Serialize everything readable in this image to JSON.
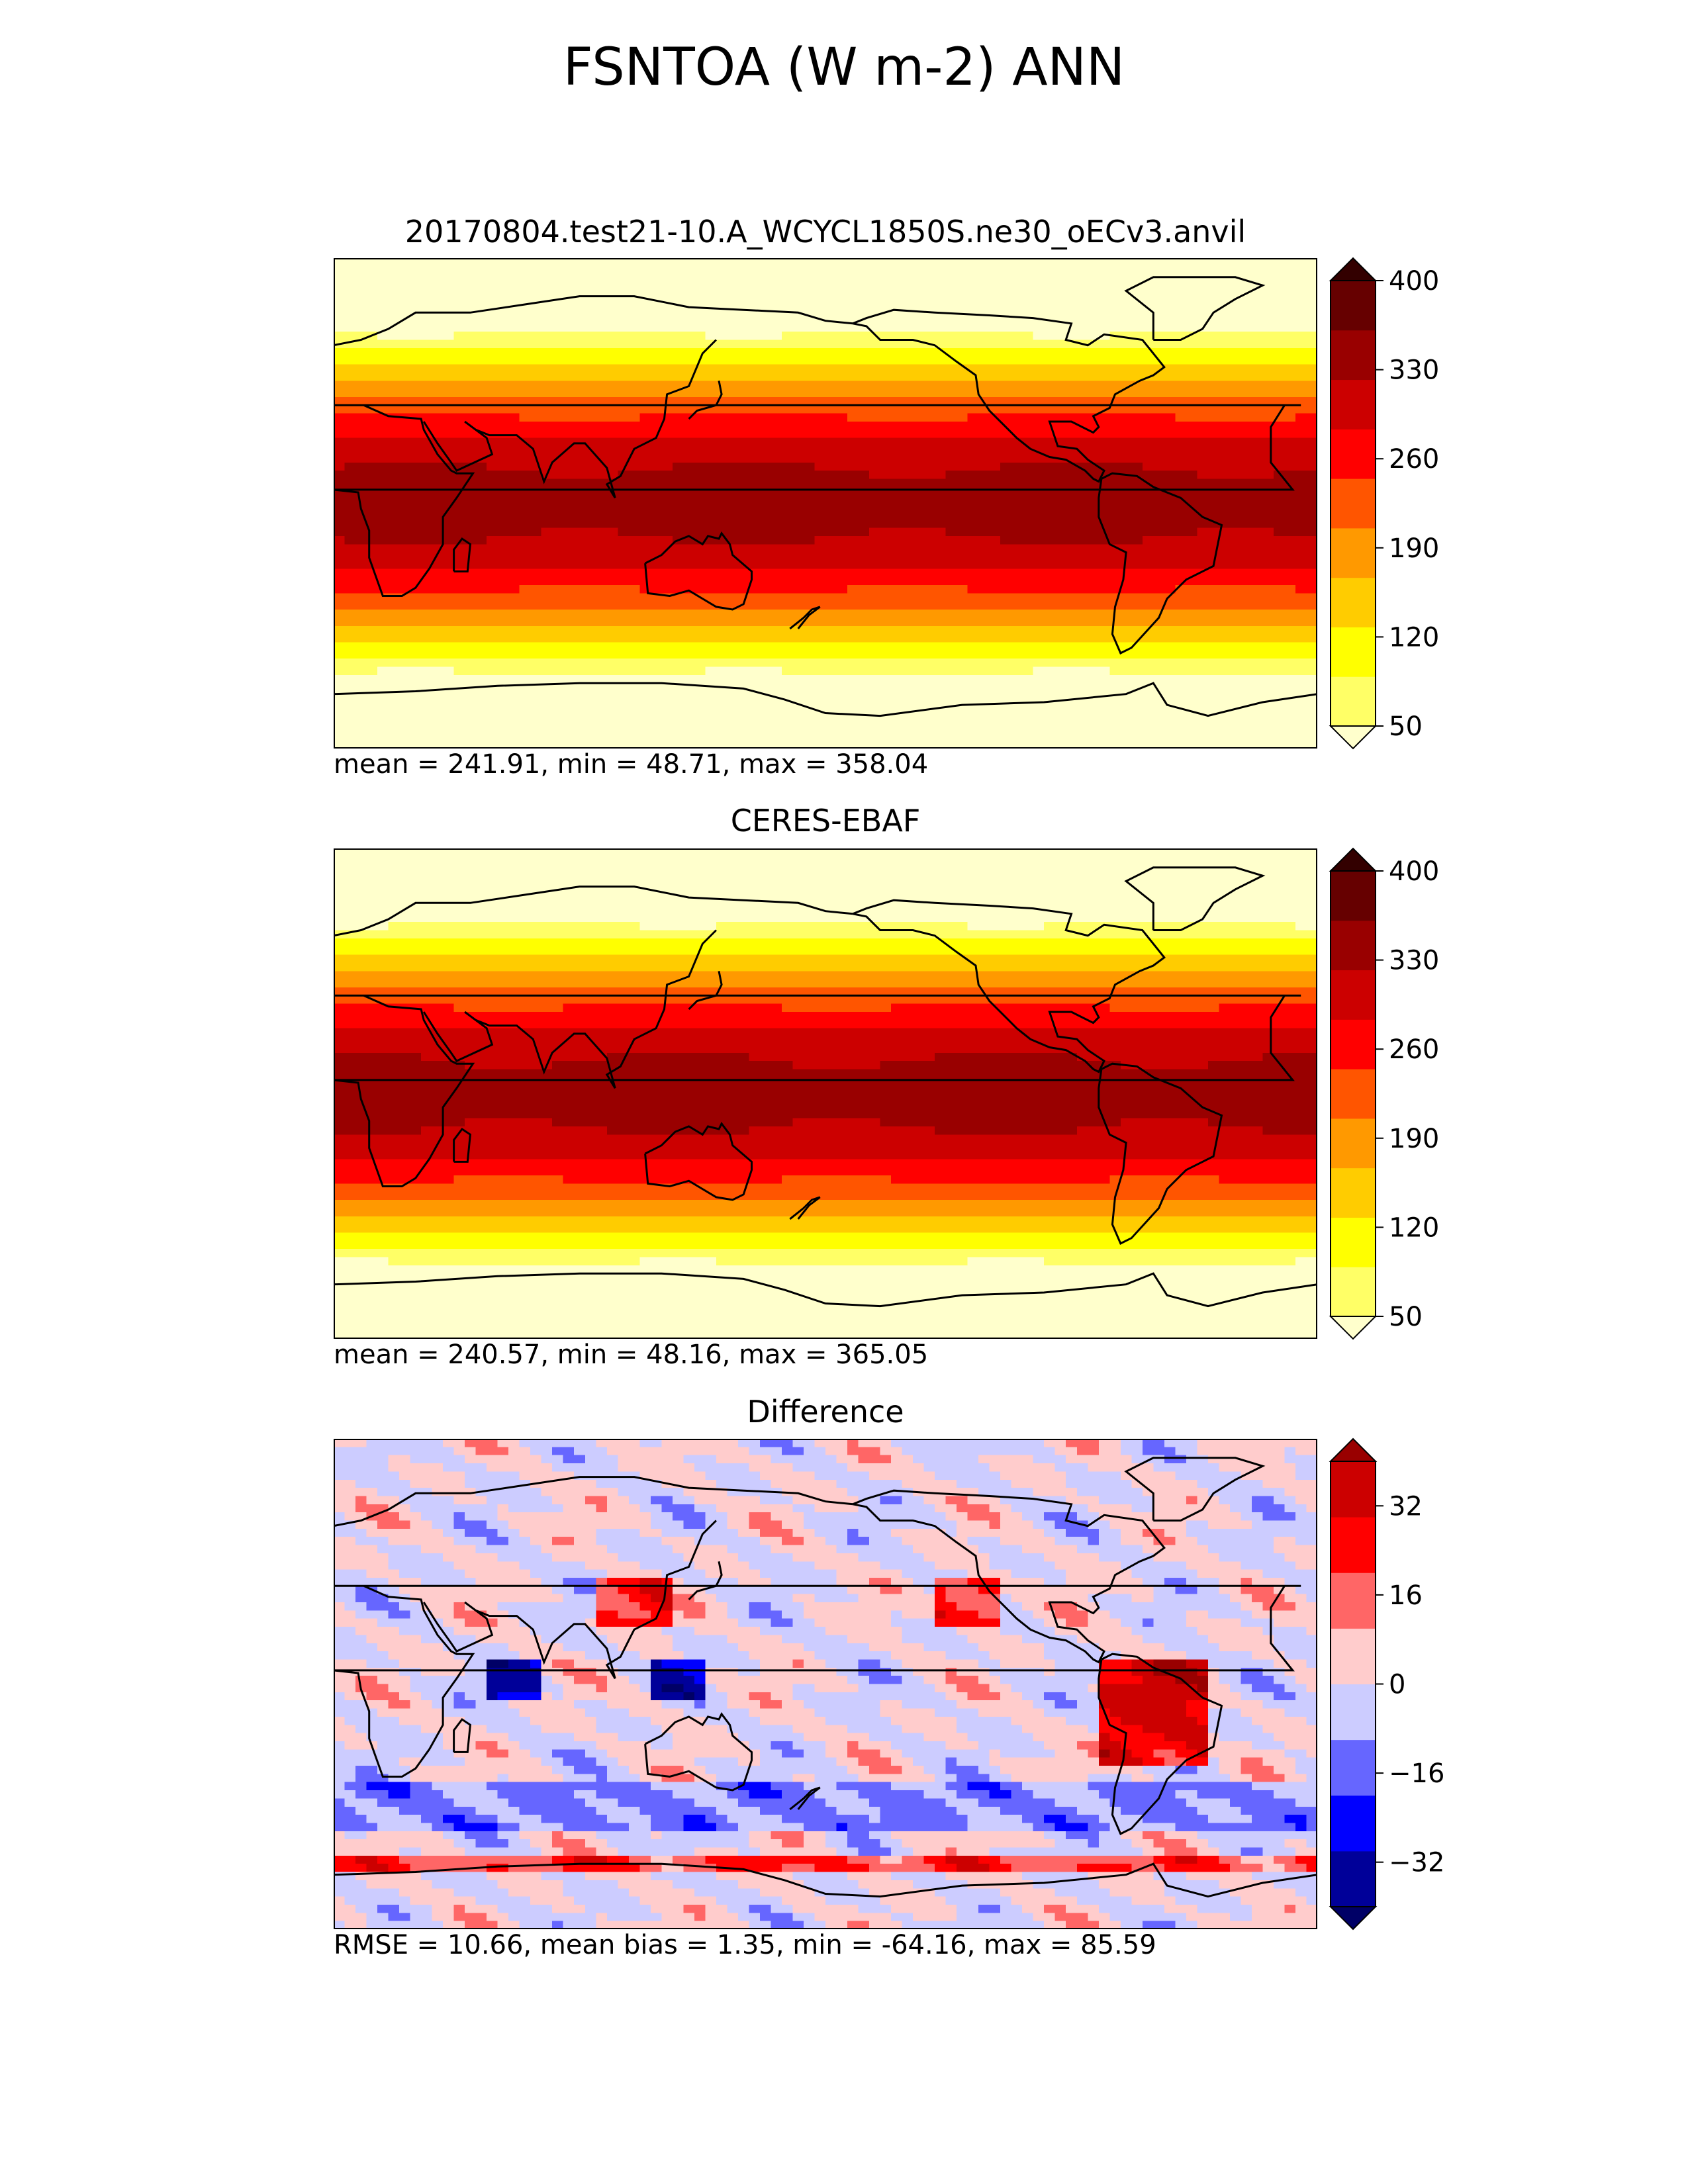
{
  "figure": {
    "title": "FSNTOA (W m-2) ANN"
  },
  "panels": [
    {
      "title": "20170804.test21-10.A_WCYCL1850S.ne30_oECv3.anvil",
      "stats": "mean = 241.91, min = 48.71, max = 358.04",
      "colorbar_ticks": [
        "400",
        "330",
        "260",
        "190",
        "120",
        "50"
      ]
    },
    {
      "title": "CERES-EBAF",
      "stats": "mean = 240.57, min = 48.16, max = 365.05",
      "colorbar_ticks": [
        "400",
        "330",
        "260",
        "190",
        "120",
        "50"
      ]
    },
    {
      "title": "Difference",
      "stats": "RMSE = 10.66, mean bias = 1.35, min = -64.16, max = 85.59",
      "colorbar_ticks": [
        "32",
        "16",
        "0",
        "−16",
        "−32"
      ]
    }
  ],
  "chart_data": [
    {
      "type": "heatmap",
      "title": "20170804.test21-10.A_WCYCL1850S.ne30_oECv3.anvil",
      "variable": "FSNTOA (W m-2) ANN",
      "levels": [
        50,
        85,
        120,
        155,
        190,
        225,
        260,
        295,
        330,
        365,
        400
      ],
      "extend": "both",
      "colors": [
        "#ffffcc",
        "#ffff66",
        "#ffff00",
        "#ffcc00",
        "#ff9900",
        "#ff5500",
        "#ff0000",
        "#cc0000",
        "#990000",
        "#660000",
        "#330000"
      ],
      "xlim": [
        0,
        360
      ],
      "ylim": [
        -90,
        90
      ],
      "mean": 241.91,
      "min": 48.71,
      "max": 358.04
    },
    {
      "type": "heatmap",
      "title": "CERES-EBAF",
      "variable": "FSNTOA (W m-2) ANN",
      "levels": [
        50,
        85,
        120,
        155,
        190,
        225,
        260,
        295,
        330,
        365,
        400
      ],
      "extend": "both",
      "colors": [
        "#ffffcc",
        "#ffff66",
        "#ffff00",
        "#ffcc00",
        "#ff9900",
        "#ff5500",
        "#ff0000",
        "#cc0000",
        "#990000",
        "#660000",
        "#330000"
      ],
      "xlim": [
        0,
        360
      ],
      "ylim": [
        -90,
        90
      ],
      "mean": 240.57,
      "min": 48.16,
      "max": 365.05
    },
    {
      "type": "heatmap",
      "title": "Difference",
      "levels": [
        -40,
        -32,
        -24,
        -16,
        -8,
        0,
        8,
        16,
        24,
        32,
        40
      ],
      "extend": "both",
      "colors": [
        "#000066",
        "#000099",
        "#0000ff",
        "#6666ff",
        "#ccccff",
        "#ffcccc",
        "#ff6666",
        "#ff0000",
        "#cc0000",
        "#990000"
      ],
      "xlim": [
        0,
        360
      ],
      "ylim": [
        -90,
        90
      ],
      "rmse": 10.66,
      "mean_bias": 1.35,
      "min": -64.16,
      "max": 85.59
    }
  ]
}
